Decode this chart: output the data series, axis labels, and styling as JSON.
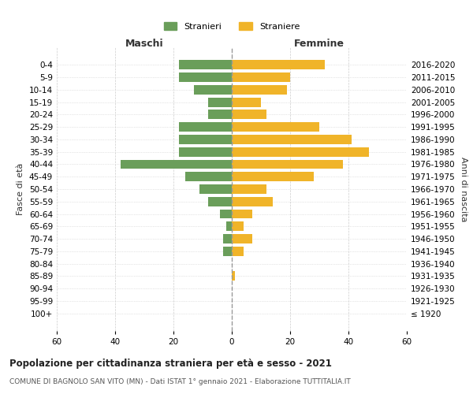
{
  "age_groups": [
    "100+",
    "95-99",
    "90-94",
    "85-89",
    "80-84",
    "75-79",
    "70-74",
    "65-69",
    "60-64",
    "55-59",
    "50-54",
    "45-49",
    "40-44",
    "35-39",
    "30-34",
    "25-29",
    "20-24",
    "15-19",
    "10-14",
    "5-9",
    "0-4"
  ],
  "birth_years": [
    "≤ 1920",
    "1921-1925",
    "1926-1930",
    "1931-1935",
    "1936-1940",
    "1941-1945",
    "1946-1950",
    "1951-1955",
    "1956-1960",
    "1961-1965",
    "1966-1970",
    "1971-1975",
    "1976-1980",
    "1981-1985",
    "1986-1990",
    "1991-1995",
    "1996-2000",
    "2001-2005",
    "2006-2010",
    "2011-2015",
    "2016-2020"
  ],
  "maschi": [
    0,
    0,
    0,
    0,
    0,
    3,
    3,
    2,
    4,
    8,
    11,
    16,
    38,
    18,
    18,
    18,
    8,
    8,
    13,
    18,
    18
  ],
  "femmine": [
    0,
    0,
    0,
    1,
    0,
    4,
    7,
    4,
    7,
    14,
    12,
    28,
    38,
    47,
    41,
    30,
    12,
    10,
    19,
    20,
    32
  ],
  "color_maschi": "#6a9e5a",
  "color_femmine": "#f0b429",
  "title": "Popolazione per cittadinanza straniera per età e sesso - 2021",
  "subtitle": "COMUNE DI BAGNOLO SAN VITO (MN) - Dati ISTAT 1° gennaio 2021 - Elaborazione TUTTITALIA.IT",
  "xlabel_left": "Maschi",
  "xlabel_right": "Femmine",
  "ylabel_left": "Fasce di età",
  "ylabel_right": "Anni di nascita",
  "legend_maschi": "Stranieri",
  "legend_femmine": "Straniere",
  "xlim": 60,
  "background_color": "#ffffff",
  "grid_color": "#cccccc"
}
